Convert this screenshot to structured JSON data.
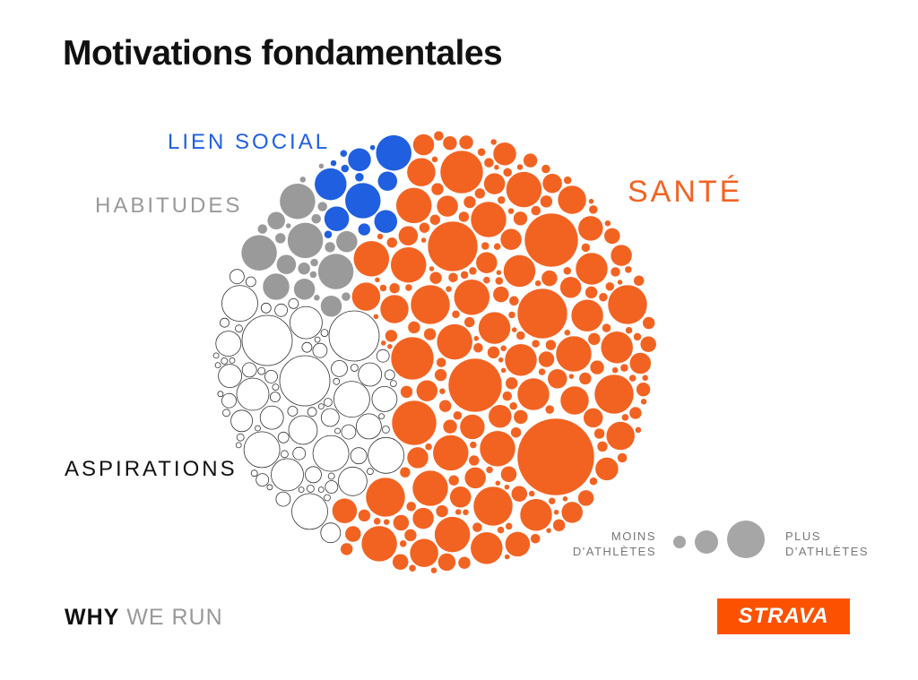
{
  "page": {
    "title": "Motivations fondamentales",
    "footer_bold": "WHY",
    "footer_light": "WE RUN",
    "logo_text": "STRAVA"
  },
  "legend": {
    "min_line1": "MOINS",
    "min_line2": "D'ATHLÈTES",
    "max_line1": "PLUS",
    "max_line2": "D'ATHLÈTES"
  },
  "colors": {
    "sante": "#f26322",
    "lien_social": "#1f5fe0",
    "habitudes": "#9a9a9a",
    "aspirations": "#ffffff",
    "legend": "#a6a6a6",
    "strava": "#fc5200"
  },
  "chart_data": {
    "type": "bubble-pack",
    "title": "Motivations fondamentales",
    "categories": [
      {
        "key": "lien_social",
        "label": "LIEN SOCIAL",
        "color": "#1f5fe0",
        "share": 0.05
      },
      {
        "key": "habitudes",
        "label": "HABITUDES",
        "color": "#9a9a9a",
        "share": 0.08
      },
      {
        "key": "aspirations",
        "label": "ASPIRATIONS",
        "color": "#ffffff",
        "share": 0.27
      },
      {
        "key": "sante",
        "label": "SANTÉ",
        "color": "#f26322",
        "share": 0.6
      }
    ],
    "size_legend": {
      "min_label": "MOINS D'ATHLÈTES",
      "max_label": "PLUS D'ATHLÈTES",
      "steps": 3
    }
  }
}
